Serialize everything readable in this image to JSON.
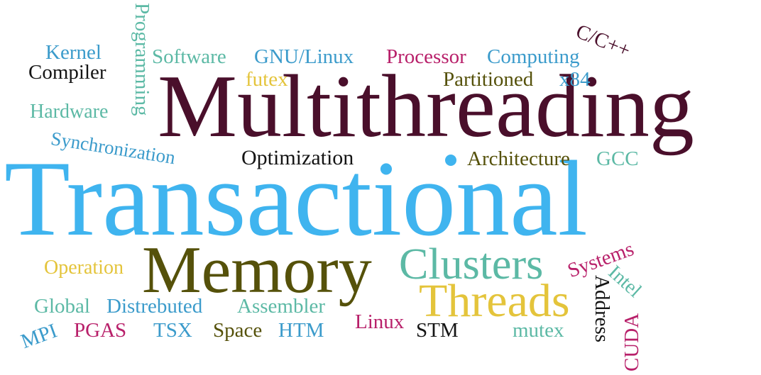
{
  "colors": {
    "plum": "#4a0f2b",
    "sky": "#3fb4ef",
    "olive": "#55510a",
    "teal": "#5cb9a5",
    "gold": "#e4c43b",
    "magenta": "#b8206a",
    "blue": "#3b9bcb",
    "black": "#141414"
  },
  "words": {
    "multithreading": "Multithreading",
    "transactional": "Transactional",
    "memory": "Memory",
    "clusters": "Clusters",
    "threads": "Threads",
    "kernel": "Kernel",
    "compiler": "Compiler",
    "hardware": "Hardware",
    "programming": "Programming",
    "software": "Software",
    "gnu_linux": "GNU/Linux",
    "processor": "Processor",
    "computing": "Computing",
    "c_cpp": "C/C++",
    "futex": "futex",
    "partitioned": "Partitioned",
    "x84": "x84",
    "synchronization": "Synchronization",
    "optimization": "Optimization",
    "architecture": "Architecture",
    "gcc": "GCC",
    "operation": "Operation",
    "systems": "Systems",
    "intel": "Intel",
    "address": "Address",
    "cuda": "CUDA",
    "global": "Global",
    "distrebuted": "Distrebuted",
    "assembler": "Assembler",
    "linux": "Linux",
    "stm": "STM",
    "mutex": "mutex",
    "mpi": "MPI",
    "pgas": "PGAS",
    "tsx": "TSX",
    "space": "Space",
    "htm": "HTM"
  }
}
